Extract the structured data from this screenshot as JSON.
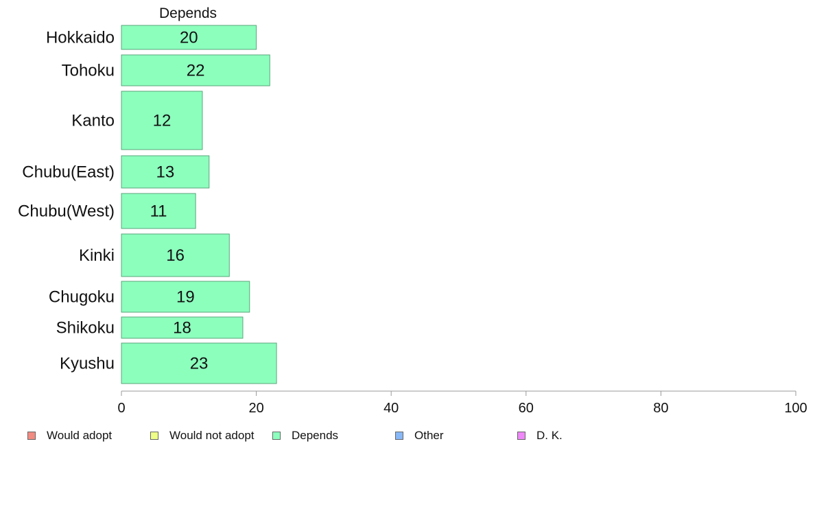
{
  "chart_data": {
    "type": "bar",
    "orientation": "horizontal",
    "title": "Depends",
    "categories": [
      "Hokkaido",
      "Tohoku",
      "Kanto",
      "Chubu(East)",
      "Chubu(West)",
      "Kinki",
      "Chugoku",
      "Shikoku",
      "Kyushu"
    ],
    "values": [
      20,
      22,
      12,
      13,
      11,
      16,
      19,
      18,
      23
    ],
    "xlim": [
      0,
      100
    ],
    "xticks": [
      "0",
      "20",
      "40",
      "60",
      "80",
      "100"
    ],
    "grid": false,
    "bar_color": "#8cffbd",
    "bar_border_color": "#5aa57a",
    "legend_placement": "bottom",
    "legend": [
      {
        "label": "Would adopt",
        "color": "#f28b82"
      },
      {
        "label": "Would not adopt",
        "color": "#eeff88"
      },
      {
        "label": "Depends",
        "color": "#8cffbd"
      },
      {
        "label": "Other",
        "color": "#88b8f8"
      },
      {
        "label": "D. K.",
        "color": "#ee88f8"
      }
    ]
  }
}
